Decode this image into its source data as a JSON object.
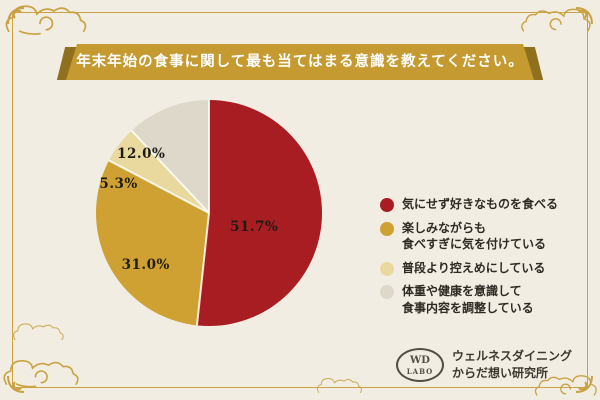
{
  "chart_data": {
    "type": "pie",
    "title": "年末年始の食事に関して最も当てはまる意識を教えてください。",
    "unit": "%",
    "legend_position": "right",
    "total": 100,
    "slices": [
      {
        "label": "気にせず好きなものを食べる",
        "legend_lines": [
          "気にせず好きなものを食べる"
        ],
        "value": 51.7,
        "pct_label": "51.7%",
        "color": "#a81d22",
        "label_x": 0.7,
        "label_y": 0.56
      },
      {
        "label": "楽しみながらも食べすぎに気を付けている",
        "legend_lines": [
          "楽しみながらも",
          "食べすぎに気を付けている"
        ],
        "value": 31.0,
        "pct_label": "31.0%",
        "color": "#cfa132",
        "label_x": 0.22,
        "label_y": 0.73
      },
      {
        "label": "普段より控えめにしている",
        "legend_lines": [
          "普段より控えめにしている"
        ],
        "value": 5.3,
        "pct_label": "5.3%",
        "color": "#e9d99e",
        "label_x": 0.1,
        "label_y": 0.37
      },
      {
        "label": "体重や健康を意識して食事内容を調整している",
        "legend_lines": [
          "体重や健康を意識して",
          "食事内容を調整している"
        ],
        "value": 12.0,
        "pct_label": "12.0%",
        "color": "#ded8ca",
        "label_x": 0.2,
        "label_y": 0.24
      }
    ]
  },
  "footer": {
    "logo_line1": "WD",
    "logo_line2": "LABO",
    "org_line1": "ウェルネスダイニング",
    "org_line2": "からだ想い研究所"
  },
  "colors": {
    "background": "#f2ede3",
    "frame": "#c9a343",
    "banner": "#c59a31",
    "banner_fold": "#8f701e",
    "title_text": "#ffffff",
    "label_text": "#1f1c15",
    "legend_text": "#2e2a23"
  }
}
